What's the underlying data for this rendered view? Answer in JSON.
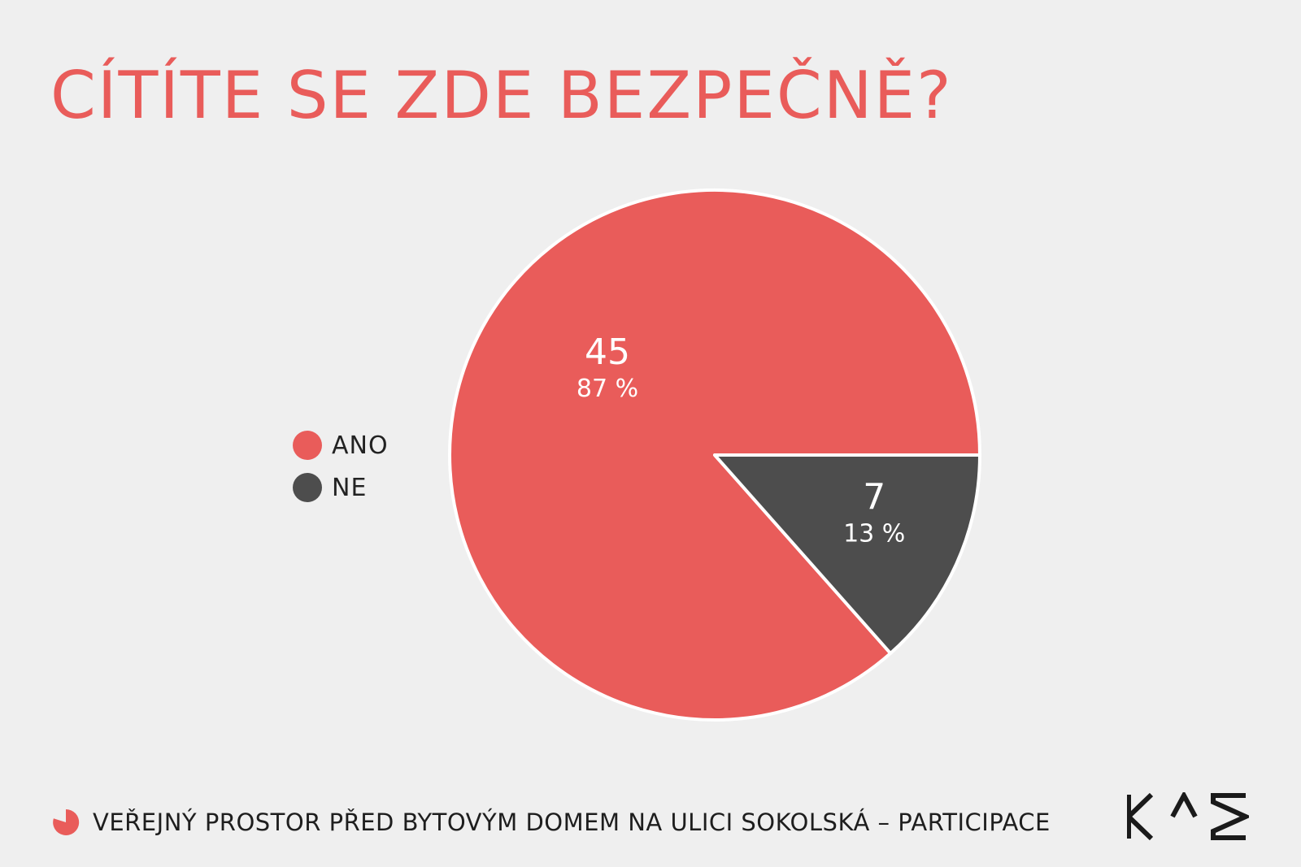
{
  "title": "CÍTÍTE SE ZDE BEZPEČNĚ?",
  "chart_data": {
    "type": "pie",
    "title": "CÍTÍTE SE ZDE BEZPEČNĚ?",
    "categories": [
      "ANO",
      "NE"
    ],
    "values": [
      45,
      7
    ],
    "percentages": [
      "87 %",
      "13 %"
    ],
    "colors": [
      "#e95c5a",
      "#4d4d4d"
    ],
    "legend_position": "left"
  },
  "legend": {
    "items": [
      {
        "label": "ANO",
        "color": "#e95c5a"
      },
      {
        "label": "NE",
        "color": "#4d4d4d"
      }
    ]
  },
  "footer": {
    "icon": "pie-icon",
    "text": "VEŘEJNÝ PROSTOR PŘED BYTOVÝM DOMEM NA ULICI SOKOLSKÁ – PARTICIPACE"
  },
  "logo": {
    "text": "KAM"
  },
  "colors": {
    "background": "#efefef",
    "accent": "#e95c5a",
    "dark": "#4d4d4d"
  }
}
